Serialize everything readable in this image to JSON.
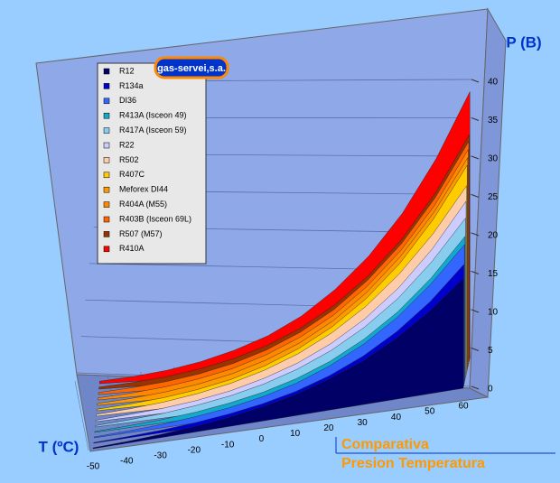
{
  "chart_data": {
    "type": "ribbon3d",
    "y_label": "P (B)",
    "x_label": "T (ºC)",
    "title": "Comparativa",
    "subtitle": "Presion Temperatura",
    "logo": "gas-servei,s.a.",
    "x": [
      -50,
      -40,
      -30,
      -20,
      -10,
      0,
      10,
      20,
      30,
      40,
      50,
      60
    ],
    "xlim": [
      -50,
      60
    ],
    "xticks": [
      -50,
      -40,
      -30,
      -20,
      -10,
      0,
      10,
      20,
      30,
      40,
      50,
      60
    ],
    "ylim": [
      0,
      40
    ],
    "yticks": [
      0,
      5,
      10,
      15,
      20,
      25,
      30,
      35,
      40
    ],
    "grid": true,
    "series": [
      {
        "name": "R12",
        "color": "#000066",
        "values": [
          0.4,
          0.6,
          1.0,
          1.5,
          2.2,
          3.1,
          4.2,
          5.7,
          7.4,
          9.6,
          12.2,
          15.2
        ]
      },
      {
        "name": "R134a",
        "color": "#0000cc",
        "values": [
          0.3,
          0.5,
          0.8,
          1.3,
          2.0,
          2.9,
          4.1,
          5.7,
          7.7,
          10.2,
          13.2,
          16.8
        ]
      },
      {
        "name": "DI36",
        "color": "#3366ff",
        "values": [
          0.4,
          0.7,
          1.1,
          1.7,
          2.5,
          3.6,
          5.0,
          6.9,
          9.2,
          12.0,
          15.4,
          19.2
        ]
      },
      {
        "name": "R413A (Isceon 49)",
        "color": "#11aacc",
        "values": [
          0.4,
          0.7,
          1.1,
          1.7,
          2.6,
          3.7,
          5.2,
          7.1,
          9.5,
          12.4,
          15.9,
          20.0
        ]
      },
      {
        "name": "R417A (Isceon 59)",
        "color": "#88ccee",
        "values": [
          0.6,
          1.0,
          1.5,
          2.3,
          3.3,
          4.6,
          6.3,
          8.4,
          11.0,
          14.1,
          17.9,
          22.2
        ]
      },
      {
        "name": "R22",
        "color": "#ccccff",
        "values": [
          0.6,
          1.1,
          1.6,
          2.4,
          3.5,
          5.0,
          6.8,
          9.1,
          11.9,
          15.3,
          19.4,
          24.2
        ]
      },
      {
        "name": "R502",
        "color": "#ffccaa",
        "values": [
          0.8,
          1.3,
          2.0,
          3.0,
          4.3,
          5.9,
          7.9,
          10.4,
          13.4,
          17.0,
          21.2,
          26.0
        ]
      },
      {
        "name": "R407C",
        "color": "#ffcc00",
        "values": [
          0.7,
          1.2,
          1.9,
          2.9,
          4.2,
          6.0,
          8.2,
          10.9,
          14.2,
          18.2,
          23.0,
          28.5
        ]
      },
      {
        "name": "Meforex DI44",
        "color": "#ff9900",
        "values": [
          0.8,
          1.3,
          2.1,
          3.1,
          4.5,
          6.3,
          8.5,
          11.3,
          14.7,
          18.8,
          23.6,
          29.2
        ]
      },
      {
        "name": "R404A (M55)",
        "color": "#ff8800",
        "values": [
          0.9,
          1.4,
          2.2,
          3.3,
          4.7,
          6.6,
          8.9,
          11.7,
          15.2,
          19.3,
          24.2,
          30.0
        ]
      },
      {
        "name": "R403B (Isceon 69L)",
        "color": "#ff6600",
        "values": [
          0.9,
          1.5,
          2.3,
          3.4,
          4.9,
          6.8,
          9.2,
          12.1,
          15.7,
          19.9,
          24.9,
          30.8
        ]
      },
      {
        "name": "R507 (M57)",
        "color": "#993300",
        "values": [
          0.9,
          1.5,
          2.3,
          3.5,
          5.0,
          6.9,
          9.3,
          12.3,
          15.9,
          20.2,
          25.3,
          31.4
        ]
      },
      {
        "name": "R410A",
        "color": "#ff0000",
        "values": [
          1.1,
          1.8,
          2.8,
          4.2,
          6.0,
          8.1,
          10.9,
          14.5,
          18.7,
          23.8,
          29.9,
          37.0
        ]
      }
    ]
  }
}
